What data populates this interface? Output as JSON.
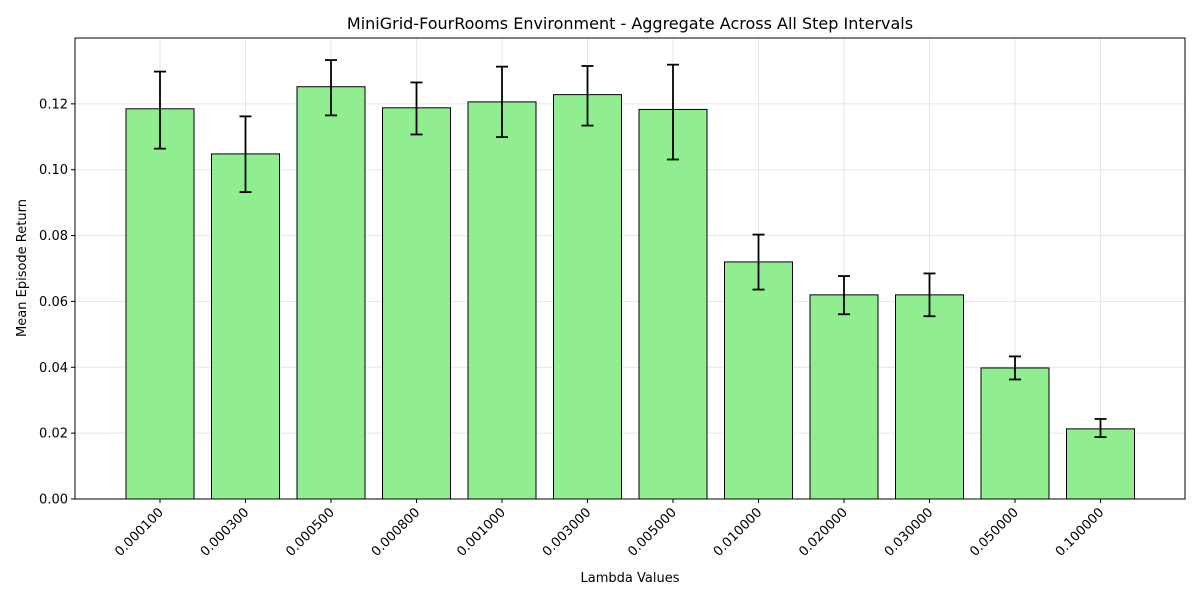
{
  "chart_data": {
    "type": "bar",
    "title": "MiniGrid-FourRooms Environment - Aggregate Across All Step Intervals",
    "xlabel": "Lambda Values",
    "ylabel": "Mean Episode Return",
    "categories": [
      "0.000100",
      "0.000300",
      "0.000500",
      "0.000800",
      "0.001000",
      "0.003000",
      "0.005000",
      "0.010000",
      "0.020000",
      "0.030000",
      "0.050000",
      "0.100000"
    ],
    "values": [
      0.1185,
      0.1048,
      0.1252,
      0.1188,
      0.1206,
      0.1228,
      0.1183,
      0.072,
      0.062,
      0.062,
      0.0398,
      0.0213
    ],
    "error_low": [
      0.1064,
      0.0932,
      0.1165,
      0.1107,
      0.1099,
      0.1134,
      0.1031,
      0.0636,
      0.0561,
      0.0555,
      0.0363,
      0.0188
    ],
    "error_high": [
      0.1298,
      0.1162,
      0.1333,
      0.1265,
      0.1313,
      0.1315,
      0.1319,
      0.0803,
      0.0677,
      0.0685,
      0.0433,
      0.0243
    ],
    "yticks": [
      "0.00",
      "0.02",
      "0.04",
      "0.06",
      "0.08",
      "0.10",
      "0.12"
    ],
    "ylim": [
      0,
      0.14
    ],
    "grid": true,
    "colors": {
      "bar_fill": "#90ee90",
      "bar_edge": "#000000",
      "grid": "#e6e6e6",
      "error": "#000000"
    }
  }
}
